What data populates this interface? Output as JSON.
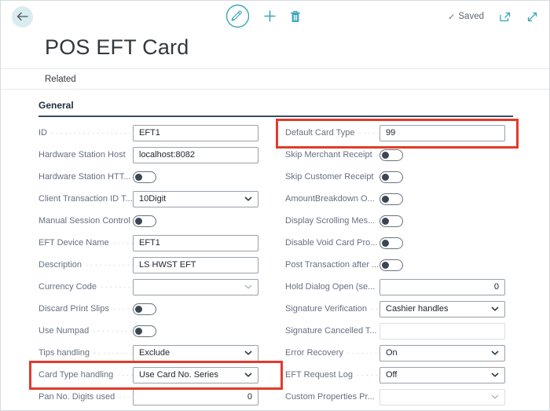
{
  "header": {
    "title": "POS EFT Card",
    "saved_label": "Saved",
    "icons": {
      "back": "arrow-left",
      "edit": "pencil-in-circle",
      "add": "plus",
      "delete": "trash",
      "popout": "open-in-new-window",
      "expand": "diagonal-resize"
    }
  },
  "menubar": {
    "related_label": "Related"
  },
  "section": {
    "title": "General"
  },
  "colors": {
    "accent_teal": "#3aa5b9",
    "highlight_red": "#e13b2b",
    "section_underline": "#3a4d62"
  },
  "form": {
    "left": [
      {
        "label": "ID",
        "type": "text",
        "value": "EFT1"
      },
      {
        "label": "Hardware Station Host",
        "type": "text",
        "value": "localhost:8082"
      },
      {
        "label": "Hardware Station HTT...",
        "type": "toggle",
        "value": "off"
      },
      {
        "label": "Client Transaction ID T...",
        "type": "select",
        "value": "10Digit"
      },
      {
        "label": "Manual Session Control",
        "type": "toggle",
        "value": "off"
      },
      {
        "label": "EFT Device Name",
        "type": "text",
        "value": "EFT1"
      },
      {
        "label": "Description",
        "type": "text",
        "value": "LS HWST EFT"
      },
      {
        "label": "Currency Code",
        "type": "combo",
        "value": ""
      },
      {
        "label": "Discard Print Slips",
        "type": "toggle",
        "value": "off"
      },
      {
        "label": "Use Numpad",
        "type": "toggle",
        "value": "off"
      },
      {
        "label": "Tips handling",
        "type": "select",
        "value": "Exclude"
      },
      {
        "label": "Card Type handling",
        "type": "select",
        "value": "Use Card No. Series",
        "highlight": true
      },
      {
        "label": "Pan No. Digits used",
        "type": "number",
        "value": "0"
      }
    ],
    "right": [
      {
        "label": "Default Card Type",
        "type": "text",
        "value": "99",
        "highlight": true
      },
      {
        "label": "Skip Merchant Receipt",
        "type": "toggle",
        "value": "off"
      },
      {
        "label": "Skip Customer Receipt",
        "type": "toggle",
        "value": "off"
      },
      {
        "label": "AmountBreakdown O...",
        "type": "toggle",
        "value": "off"
      },
      {
        "label": "Display Scrolling Mes...",
        "type": "toggle",
        "value": "off"
      },
      {
        "label": "Disable Void Card Pro...",
        "type": "toggle",
        "value": "off"
      },
      {
        "label": "Post Transaction after ...",
        "type": "toggle",
        "value": "off"
      },
      {
        "label": "Hold Dialog Open (se...",
        "type": "number",
        "value": "0"
      },
      {
        "label": "Signature Verification",
        "type": "select",
        "value": "Cashier handles"
      },
      {
        "label": "Signature Cancelled T...",
        "type": "text",
        "value": "",
        "light": true
      },
      {
        "label": "Error Recovery",
        "type": "select",
        "value": "On"
      },
      {
        "label": "EFT Request Log",
        "type": "select",
        "value": "Off"
      },
      {
        "label": "Custom Properties Pr...",
        "type": "combo",
        "value": "",
        "light": true
      }
    ]
  }
}
